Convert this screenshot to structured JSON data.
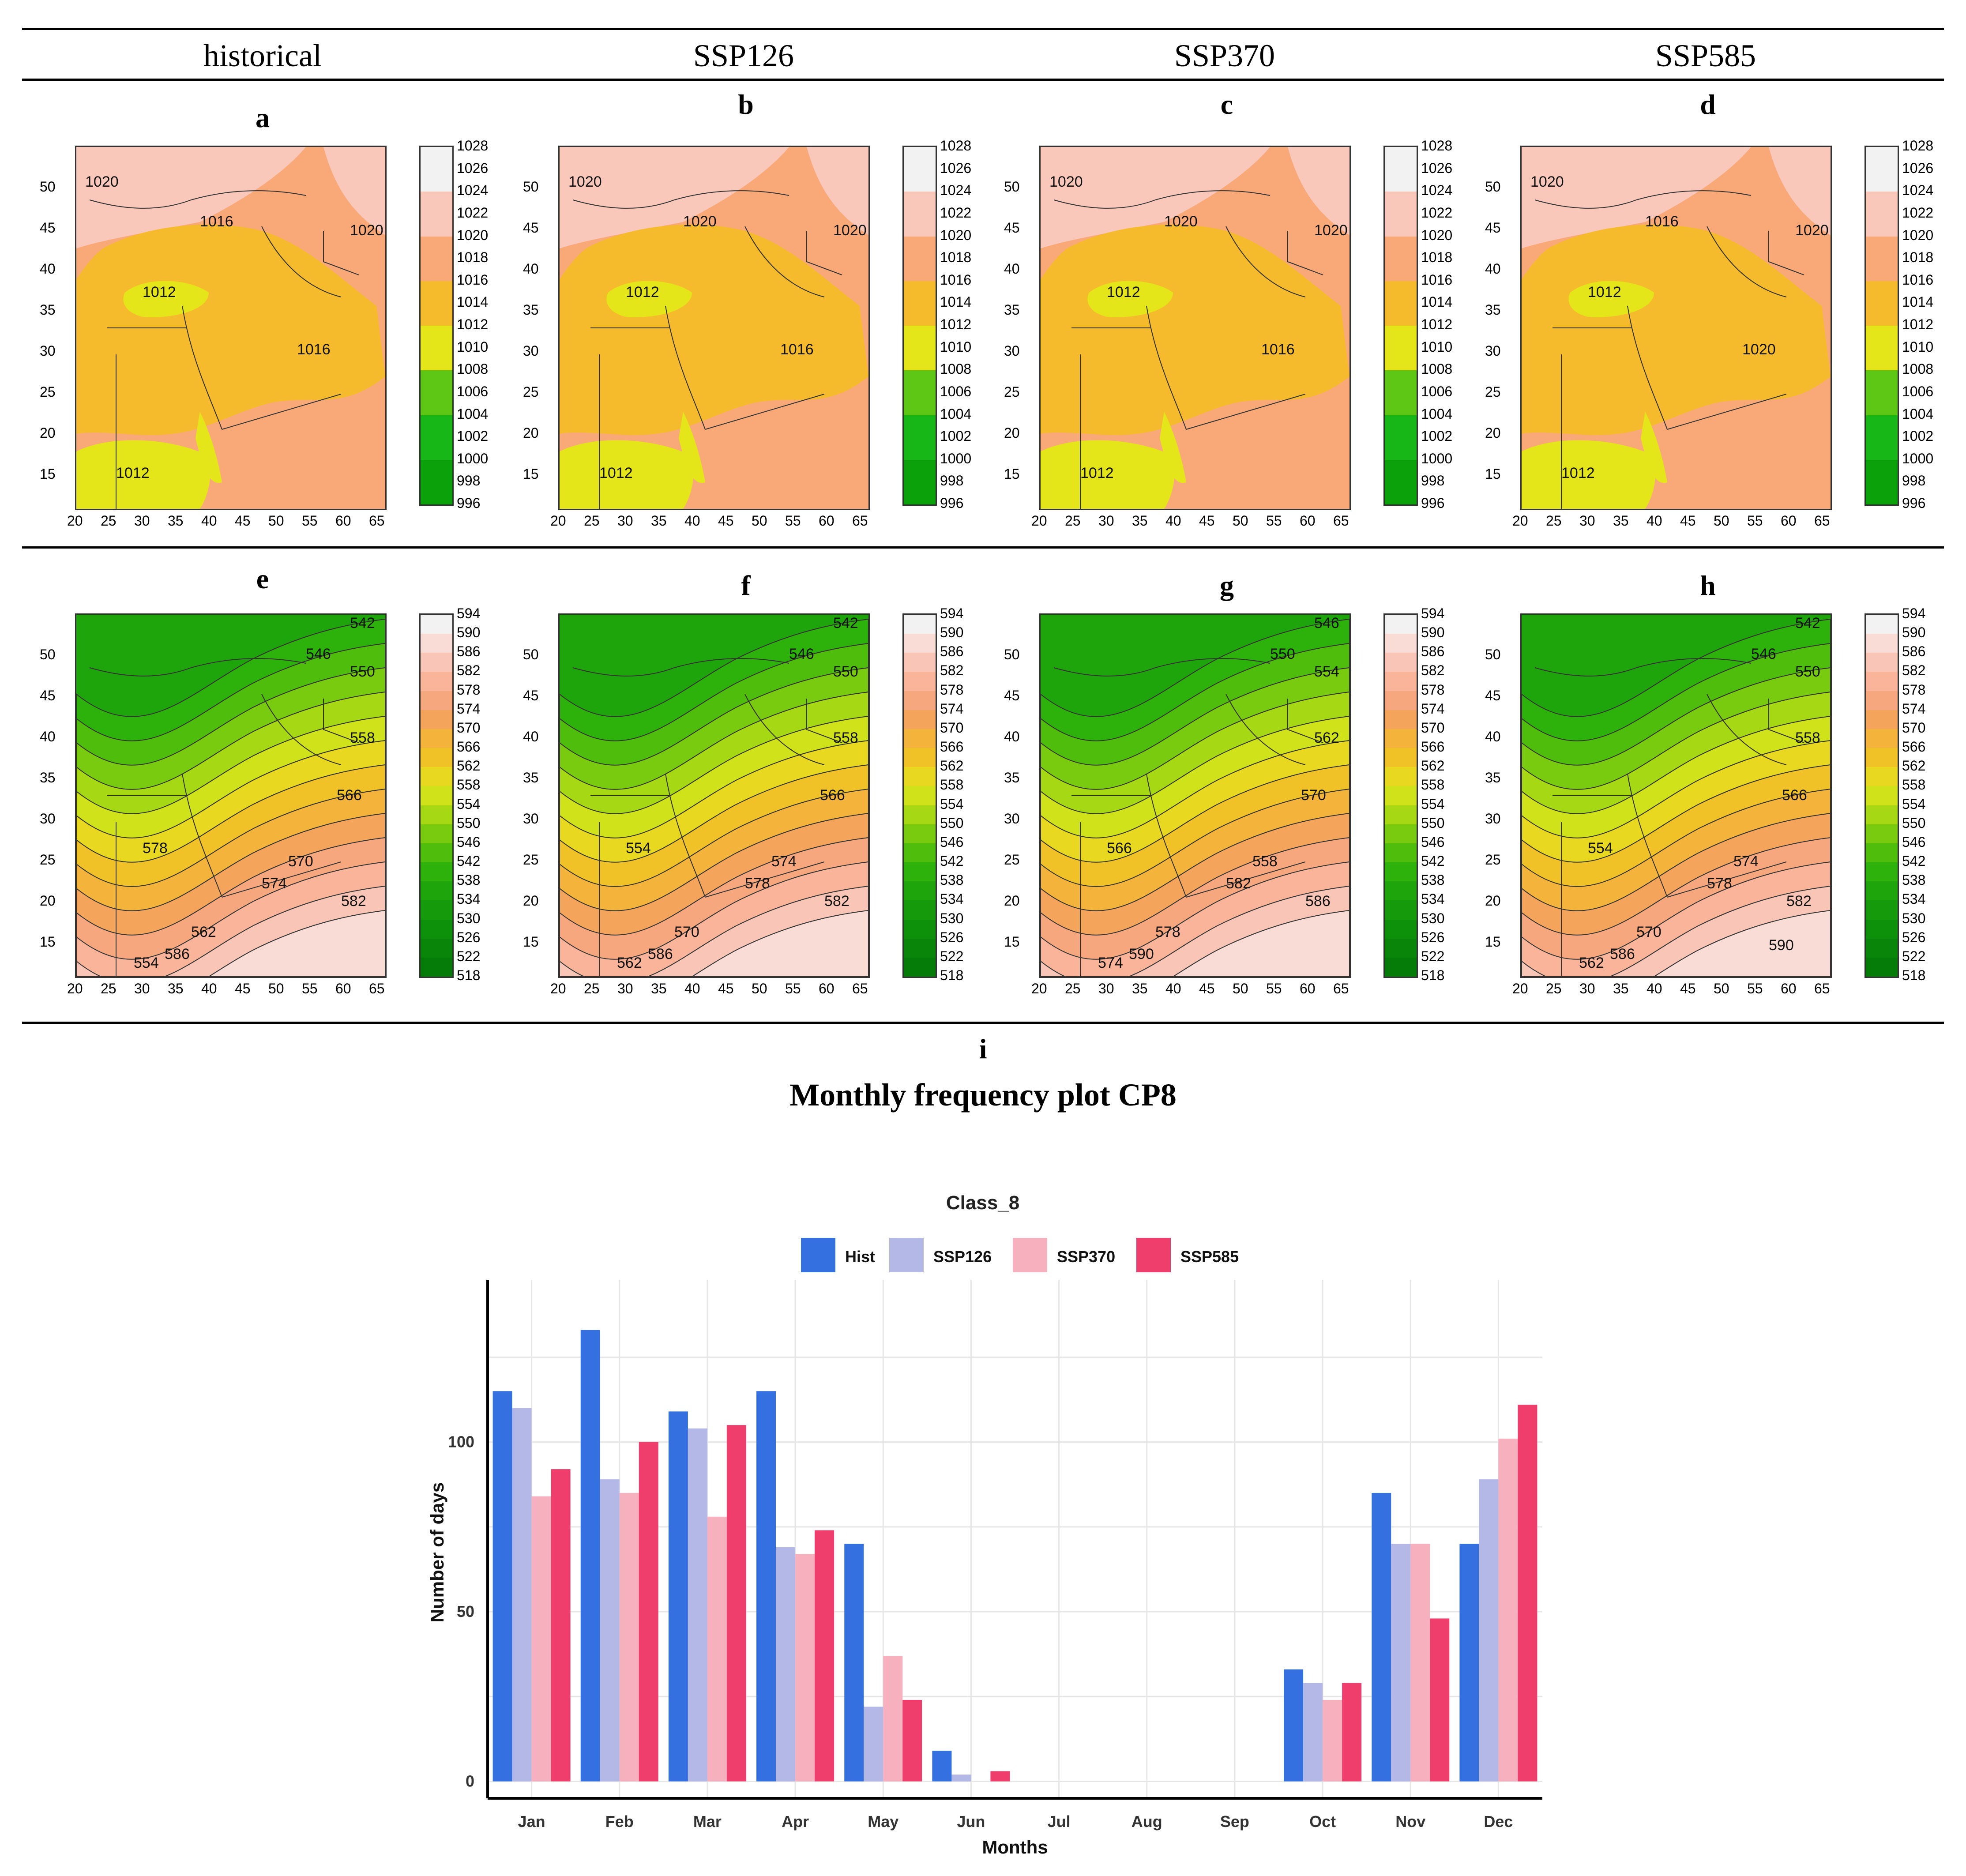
{
  "columns": [
    "historical",
    "SSP126",
    "SSP370",
    "SSP585"
  ],
  "panel_letters_top": [
    "a",
    "b",
    "c",
    "d"
  ],
  "panel_letters_mid": [
    "e",
    "f",
    "g",
    "h"
  ],
  "panel_letter_bottom": "i",
  "map_x_ticks": [
    "20",
    "25",
    "30",
    "35",
    "40",
    "45",
    "50",
    "55",
    "60",
    "65"
  ],
  "map_y_ticks": [
    "50",
    "45",
    "40",
    "35",
    "30",
    "25",
    "20",
    "15"
  ],
  "slp": {
    "legend_labels": [
      "1028",
      "1026",
      "1024",
      "1022",
      "1020",
      "1018",
      "1016",
      "1014",
      "1012",
      "1010",
      "1008",
      "1006",
      "1004",
      "1002",
      "1000",
      "998",
      "996"
    ],
    "legend_colors": [
      "#f2f2f2",
      "#f9c8bb",
      "#f9a878",
      "#f6bb2c",
      "#e4e61a",
      "#5ec614",
      "#17b717",
      "#0aa10a"
    ],
    "contour_labels": [
      [
        "1020",
        "1016",
        "1012",
        "1016",
        "1012",
        "1020"
      ],
      [
        "1020",
        "1020",
        "1012",
        "1016",
        "1012",
        "1020"
      ],
      [
        "1020",
        "1020",
        "1012",
        "1016",
        "1012",
        "1020"
      ],
      [
        "1020",
        "1016",
        "1012",
        "1020",
        "1012",
        "1020"
      ]
    ]
  },
  "z500": {
    "legend_labels": [
      "594",
      "590",
      "586",
      "582",
      "578",
      "574",
      "570",
      "566",
      "562",
      "558",
      "554",
      "550",
      "546",
      "542",
      "538",
      "534",
      "530",
      "526",
      "522",
      "518"
    ],
    "legend_colors": [
      "#f2f2f2",
      "#f9dcd5",
      "#f9c5b6",
      "#f9b49a",
      "#f7a77e",
      "#f5a55b",
      "#f4b43b",
      "#f0c228",
      "#e8d81f",
      "#cfe21a",
      "#a6d913",
      "#78cb0f",
      "#4fbd0c",
      "#2db10b",
      "#1ea50b",
      "#149a0a",
      "#0d900a",
      "#098609",
      "#067c08"
    ],
    "contour_labels": [
      [
        "542",
        "546",
        "550",
        "558",
        "566",
        "570",
        "578",
        "554",
        "562",
        "574",
        "582",
        "586"
      ],
      [
        "542",
        "546",
        "550",
        "558",
        "566",
        "574",
        "554",
        "562",
        "570",
        "578",
        "582",
        "586"
      ],
      [
        "546",
        "550",
        "554",
        "562",
        "570",
        "558",
        "566",
        "574",
        "578",
        "582",
        "586",
        "590"
      ],
      [
        "542",
        "546",
        "550",
        "558",
        "566",
        "574",
        "554",
        "562",
        "570",
        "578",
        "582",
        "586",
        "590"
      ]
    ]
  },
  "monthly_title": "Monthly frequency plot CP8",
  "chart_data": {
    "type": "bar",
    "title": "Class_8",
    "xlabel": "Months",
    "ylabel": "Number of days",
    "categories": [
      "Jan",
      "Feb",
      "Mar",
      "Apr",
      "May",
      "Jun",
      "Jul",
      "Aug",
      "Sep",
      "Oct",
      "Nov",
      "Dec"
    ],
    "yticks": [
      0,
      50,
      100
    ],
    "ylim": [
      -5,
      140
    ],
    "legend_position": "top",
    "grid": true,
    "series": [
      {
        "name": "Hist",
        "color": "#3470e0",
        "values": [
          115,
          133,
          109,
          115,
          70,
          9,
          0,
          0,
          0,
          33,
          85,
          70
        ]
      },
      {
        "name": "SSP126",
        "color": "#b4b8e6",
        "values": [
          110,
          89,
          104,
          69,
          22,
          2,
          0,
          0,
          0,
          29,
          70,
          89
        ]
      },
      {
        "name": "SSP370",
        "color": "#f7b0bd",
        "values": [
          84,
          85,
          78,
          67,
          37,
          0,
          0,
          0,
          0,
          24,
          70,
          101
        ]
      },
      {
        "name": "SSP585",
        "color": "#ef3e6c",
        "values": [
          92,
          100,
          105,
          74,
          24,
          3,
          0,
          0,
          0,
          29,
          48,
          111
        ]
      }
    ]
  }
}
